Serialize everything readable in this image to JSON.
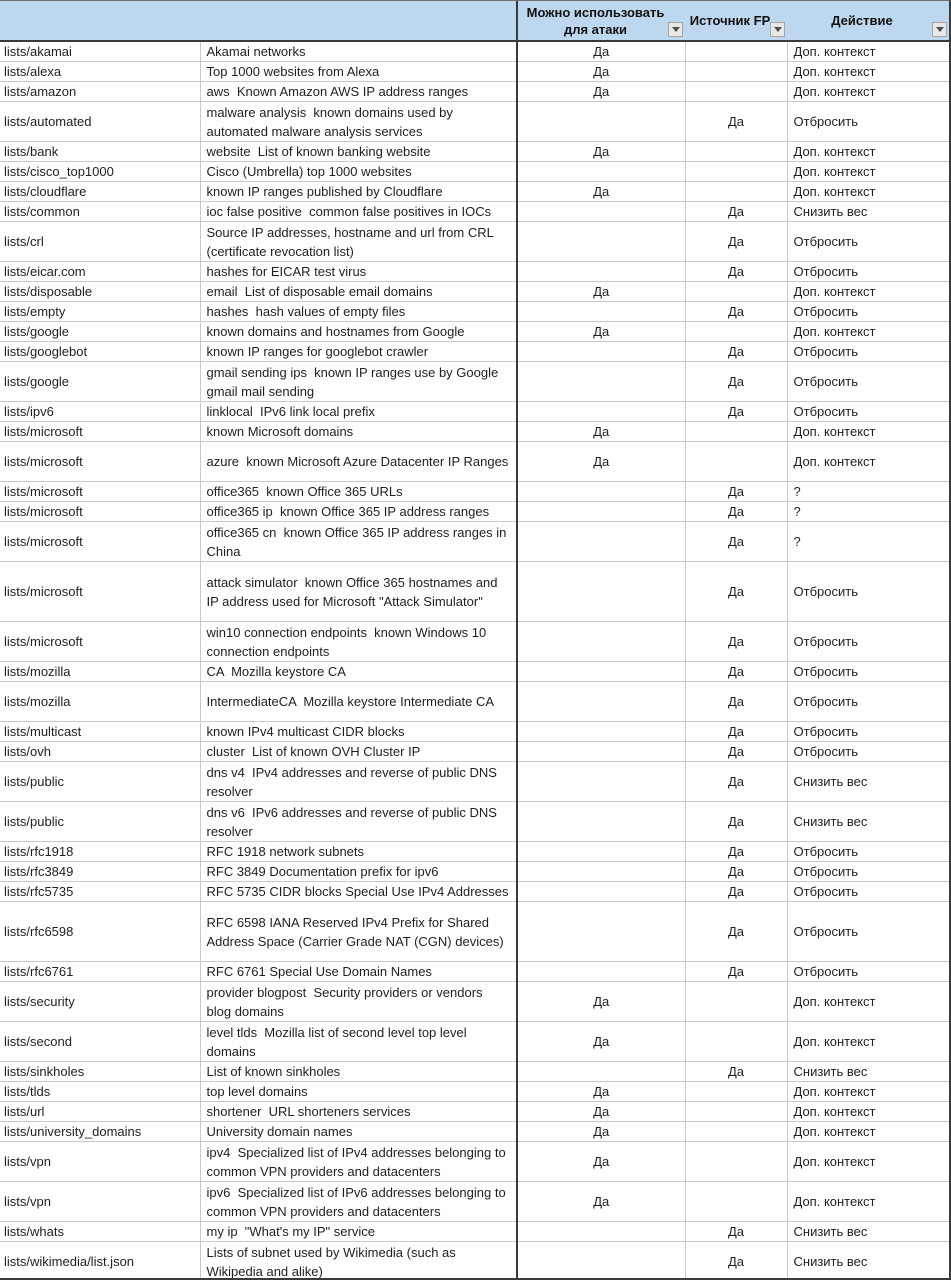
{
  "table": {
    "headers": {
      "list_name": "",
      "description": "",
      "attack_usable": "Можно использовать для атаки",
      "fp_source": "Источник FP",
      "action": "Действие"
    },
    "action_values": [
      "Доп. контекст",
      "Отбросить",
      "Снизить вес",
      "?"
    ],
    "yes_value": "Да",
    "rows": [
      {
        "name": "lists/akamai",
        "description": "Akamai networks",
        "attack": "Да",
        "fp": "",
        "action": "Доп. контекст",
        "lines": 1
      },
      {
        "name": "lists/alexa",
        "description": "Top 1000 websites from Alexa",
        "attack": "Да",
        "fp": "",
        "action": "Доп. контекст",
        "lines": 1
      },
      {
        "name": "lists/amazon",
        "description": "aws  Known Amazon AWS IP address ranges",
        "attack": "Да",
        "fp": "",
        "action": "Доп. контекст",
        "lines": 1
      },
      {
        "name": "lists/automated",
        "description": "malware analysis  known domains used by automated malware analysis services",
        "attack": "",
        "fp": "Да",
        "action": "Отбросить",
        "lines": 2
      },
      {
        "name": "lists/bank",
        "description": "website  List of known banking website",
        "attack": "Да",
        "fp": "",
        "action": "Доп. контекст",
        "lines": 1
      },
      {
        "name": "lists/cisco_top1000",
        "description": "Cisco (Umbrella) top 1000 websites",
        "attack": "",
        "fp": "",
        "action": "Доп. контекст",
        "lines": 1
      },
      {
        "name": "lists/cloudflare",
        "description": "known IP ranges published by Cloudflare",
        "attack": "Да",
        "fp": "",
        "action": "Доп. контекст",
        "lines": 1
      },
      {
        "name": "lists/common",
        "description": "ioc false positive  common false positives in IOCs",
        "attack": "",
        "fp": "Да",
        "action": "Снизить вес",
        "lines": 1
      },
      {
        "name": "lists/crl",
        "description": "Source IP addresses, hostname and url from CRL (certificate revocation list)",
        "attack": "",
        "fp": "Да",
        "action": "Отбросить",
        "lines": 2
      },
      {
        "name": "lists/eicar.com",
        "description": "hashes for EICAR test virus",
        "attack": "",
        "fp": "Да",
        "action": "Отбросить",
        "lines": 1
      },
      {
        "name": "lists/disposable",
        "description": "email  List of disposable email domains",
        "attack": "Да",
        "fp": "",
        "action": "Доп. контекст",
        "lines": 1
      },
      {
        "name": "lists/empty",
        "description": "hashes  hash values of empty files",
        "attack": "",
        "fp": "Да",
        "action": "Отбросить",
        "lines": 1
      },
      {
        "name": "lists/google",
        "description": "known domains and hostnames from Google",
        "attack": "Да",
        "fp": "",
        "action": "Доп. контекст",
        "lines": 1
      },
      {
        "name": "lists/googlebot",
        "description": "known IP ranges for googlebot crawler",
        "attack": "",
        "fp": "Да",
        "action": "Отбросить",
        "lines": 1
      },
      {
        "name": "lists/google",
        "description": "gmail sending ips  known IP ranges use by Google gmail mail sending",
        "attack": "",
        "fp": "Да",
        "action": "Отбросить",
        "lines": 2
      },
      {
        "name": "lists/ipv6",
        "description": "linklocal  IPv6 link local prefix",
        "attack": "",
        "fp": "Да",
        "action": "Отбросить",
        "lines": 1
      },
      {
        "name": "lists/microsoft",
        "description": "known Microsoft domains",
        "attack": "Да",
        "fp": "",
        "action": "Доп. контекст",
        "lines": 1
      },
      {
        "name": "lists/microsoft",
        "description": "azure  known Microsoft Azure Datacenter IP Ranges",
        "attack": "Да",
        "fp": "",
        "action": "Доп. контекст",
        "lines": 2
      },
      {
        "name": "lists/microsoft",
        "description": "office365  known Office 365 URLs",
        "attack": "",
        "fp": "Да",
        "action": "?",
        "lines": 1
      },
      {
        "name": "lists/microsoft",
        "description": "office365 ip  known Office 365 IP address ranges",
        "attack": "",
        "fp": "Да",
        "action": "?",
        "lines": 1
      },
      {
        "name": "lists/microsoft",
        "description": "office365 cn  known Office 365 IP address ranges in China",
        "attack": "",
        "fp": "Да",
        "action": "?",
        "lines": 2
      },
      {
        "name": "lists/microsoft",
        "description": "attack simulator  known Office 365 hostnames and IP address used for Microsoft \"Attack Simulator\"",
        "attack": "",
        "fp": "Да",
        "action": "Отбросить",
        "lines": 3
      },
      {
        "name": "lists/microsoft",
        "description": "win10 connection endpoints  known Windows 10 connection endpoints",
        "attack": "",
        "fp": "Да",
        "action": "Отбросить",
        "lines": 2
      },
      {
        "name": "lists/mozilla",
        "description": "CA  Mozilla keystore CA",
        "attack": "",
        "fp": "Да",
        "action": "Отбросить",
        "lines": 1
      },
      {
        "name": "lists/mozilla",
        "description": "IntermediateCA  Mozilla keystore Intermediate CA",
        "attack": "",
        "fp": "Да",
        "action": "Отбросить",
        "lines": 2
      },
      {
        "name": "lists/multicast",
        "description": "known IPv4 multicast CIDR blocks",
        "attack": "",
        "fp": "Да",
        "action": "Отбросить",
        "lines": 1
      },
      {
        "name": "lists/ovh",
        "description": "cluster  List of known OVH Cluster IP",
        "attack": "",
        "fp": "Да",
        "action": "Отбросить",
        "lines": 1
      },
      {
        "name": "lists/public",
        "description": "dns v4  IPv4 addresses and reverse of public DNS resolver",
        "attack": "",
        "fp": "Да",
        "action": "Снизить вес",
        "lines": 2
      },
      {
        "name": "lists/public",
        "description": "dns v6  IPv6 addresses and reverse of public DNS resolver",
        "attack": "",
        "fp": "Да",
        "action": "Снизить вес",
        "lines": 2
      },
      {
        "name": "lists/rfc1918",
        "description": "RFC 1918 network subnets",
        "attack": "",
        "fp": "Да",
        "action": "Отбросить",
        "lines": 1
      },
      {
        "name": "lists/rfc3849",
        "description": "RFC 3849 Documentation prefix for ipv6",
        "attack": "",
        "fp": "Да",
        "action": "Отбросить",
        "lines": 1
      },
      {
        "name": "lists/rfc5735",
        "description": "RFC 5735 CIDR blocks Special Use IPv4 Addresses",
        "attack": "",
        "fp": "Да",
        "action": "Отбросить",
        "lines": 1
      },
      {
        "name": "lists/rfc6598",
        "description": "RFC 6598 IANA Reserved IPv4 Prefix for Shared Address Space (Carrier Grade NAT (CGN) devices)",
        "attack": "",
        "fp": "Да",
        "action": "Отбросить",
        "lines": 3
      },
      {
        "name": "lists/rfc6761",
        "description": "RFC 6761 Special Use Domain Names",
        "attack": "",
        "fp": "Да",
        "action": "Отбросить",
        "lines": 1
      },
      {
        "name": "lists/security",
        "description": "provider blogpost  Security providers or vendors blog domains",
        "attack": "Да",
        "fp": "",
        "action": "Доп. контекст",
        "lines": 2
      },
      {
        "name": "lists/second",
        "description": "level tlds  Mozilla list of second level top level domains",
        "attack": "Да",
        "fp": "",
        "action": "Доп. контекст",
        "lines": 2
      },
      {
        "name": "lists/sinkholes",
        "description": "List of known sinkholes",
        "attack": "",
        "fp": "Да",
        "action": "Снизить вес",
        "lines": 1
      },
      {
        "name": "lists/tlds",
        "description": "top level domains",
        "attack": "Да",
        "fp": "",
        "action": "Доп. контекст",
        "lines": 1
      },
      {
        "name": "lists/url",
        "description": "shortener  URL shorteners services",
        "attack": "Да",
        "fp": "",
        "action": "Доп. контекст",
        "lines": 1
      },
      {
        "name": "lists/university_domains",
        "description": "University domain names",
        "attack": "Да",
        "fp": "",
        "action": "Доп. контекст",
        "lines": 1
      },
      {
        "name": "lists/vpn",
        "description": "ipv4  Specialized list of IPv4 addresses belonging to common VPN providers and datacenters",
        "attack": "Да",
        "fp": "",
        "action": "Доп. контекст",
        "lines": 2
      },
      {
        "name": "lists/vpn",
        "description": "ipv6  Specialized list of IPv6 addresses belonging to common VPN providers and datacenters",
        "attack": "Да",
        "fp": "",
        "action": "Доп. контекст",
        "lines": 2
      },
      {
        "name": "lists/whats",
        "description": "my ip  \"What's my IP\" service",
        "attack": "",
        "fp": "Да",
        "action": "Снизить вес",
        "lines": 1
      },
      {
        "name": "lists/wikimedia/list.json",
        "description": "Lists of subnet used by Wikimedia (such as Wikipedia and alike)",
        "attack": "",
        "fp": "Да",
        "action": "Снизить вес",
        "lines": 2
      }
    ]
  },
  "icons": {
    "filter_dropdown": "chevron-down"
  },
  "colors": {
    "header_bg": "#bdd7ee",
    "grid_line": "#c9c9c9",
    "dark_border": "#3a3a3a",
    "text": "#1f1f1f"
  }
}
